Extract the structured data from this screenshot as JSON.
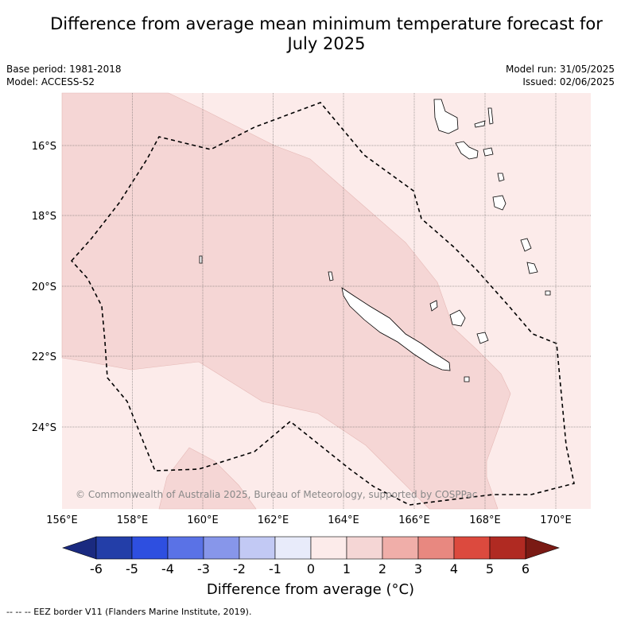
{
  "title_line1": "Difference from average mean minimum temperature forecast for",
  "title_line2": "July 2025",
  "meta": {
    "base_period": "Base period: 1981-2018",
    "model": "Model: ACCESS-S2",
    "model_run": "Model run: 31/05/2025",
    "issued": "Issued: 02/06/2025"
  },
  "copyright": "© Commonwealth of Australia 2025, Bureau of Meteorology, supported by COSPPac",
  "lon_ticks": [
    "156°E",
    "158°E",
    "160°E",
    "162°E",
    "164°E",
    "166°E",
    "168°E",
    "170°E"
  ],
  "lat_ticks": [
    "16°S",
    "18°S",
    "20°S",
    "22°S",
    "24°S"
  ],
  "colorbar": {
    "labels": [
      "-6",
      "-5",
      "-4",
      "-3",
      "-2",
      "-1",
      "0",
      "1",
      "2",
      "3",
      "4",
      "5",
      "6"
    ],
    "colors": [
      "#233ea8",
      "#2e4fe0",
      "#5a72e6",
      "#8796ea",
      "#c2c9f4",
      "#e8ebfa",
      "#fcebea",
      "#f5d6d5",
      "#f0aea9",
      "#e88880",
      "#dc4a3e",
      "#b02a22"
    ],
    "under_color": "#1a2a80",
    "over_color": "#7a1a14",
    "title": "Difference from average (°C)"
  },
  "legend_footnote": "--  --  -- EEZ border V11 (Flanders Marine Institute, 2019).",
  "anomaly_classes": {
    "light": "0 to 1",
    "medium": "1 to 2"
  }
}
